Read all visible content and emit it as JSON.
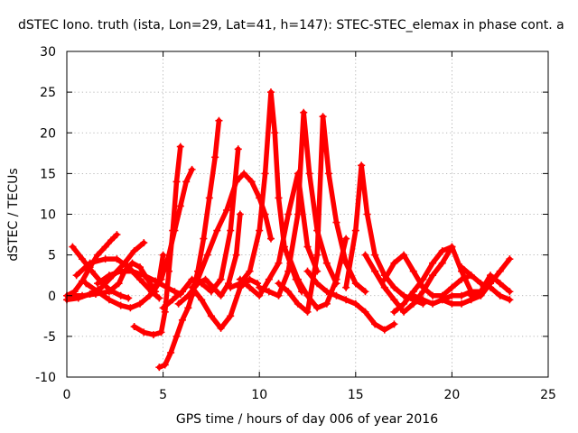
{
  "chart_data": {
    "type": "scatter",
    "title": "dSTEC Iono. truth (ista, Lon=29, Lat=41, h=147): STEC-STEC_elemax in phase cont. a",
    "xlabel": "GPS time / hours of day 006 of year 2016",
    "ylabel": "dSTEC  / TECUs",
    "xlim": [
      0,
      25
    ],
    "ylim": [
      -10,
      30
    ],
    "xticks": [
      0,
      5,
      10,
      15,
      20,
      25
    ],
    "yticks": [
      -10,
      -5,
      0,
      5,
      10,
      15,
      20,
      25,
      30
    ],
    "grid": true,
    "legend": "none",
    "marker": "plus",
    "color": "#ff0000",
    "series": [
      {
        "x": [
          0.0,
          0.4,
          0.8,
          1.2,
          1.6,
          2.0,
          2.3,
          2.6
        ],
        "y": [
          0.0,
          0.5,
          1.8,
          3.5,
          5.0,
          6.0,
          6.8,
          7.5
        ]
      },
      {
        "x": [
          0.3,
          0.8,
          1.3,
          1.8,
          2.3,
          2.8,
          3.2
        ],
        "y": [
          6.0,
          4.5,
          3.0,
          1.6,
          0.6,
          0.0,
          -0.3
        ]
      },
      {
        "x": [
          0.0,
          0.6,
          1.2,
          1.8,
          2.4,
          3.0,
          3.5,
          4.0
        ],
        "y": [
          -0.5,
          -0.3,
          0.2,
          1.0,
          2.5,
          4.0,
          5.5,
          6.5
        ]
      },
      {
        "x": [
          0.5,
          1.2,
          2.0,
          2.6,
          3.2,
          3.8,
          4.4,
          4.8
        ],
        "y": [
          2.5,
          4.0,
          4.5,
          4.5,
          3.5,
          2.0,
          0.5,
          -0.3
        ]
      },
      {
        "x": [
          0.2,
          0.8,
          1.5,
          2.2,
          2.7,
          3.0,
          3.4,
          3.8,
          4.2,
          4.6
        ],
        "y": [
          0.0,
          0.0,
          0.2,
          0.5,
          1.5,
          3.0,
          4.0,
          3.5,
          2.0,
          0.5
        ]
      },
      {
        "x": [
          1.0,
          1.6,
          2.2,
          2.8,
          3.3,
          3.8,
          4.3,
          4.8,
          5.0
        ],
        "y": [
          1.5,
          0.5,
          -0.5,
          -1.2,
          -1.5,
          -1.0,
          0.0,
          2.0,
          5.0
        ]
      },
      {
        "x": [
          1.6,
          2.2,
          2.8,
          3.4,
          4.0,
          4.6,
          5.2,
          5.6,
          5.9
        ],
        "y": [
          1.5,
          2.5,
          3.0,
          3.0,
          2.5,
          1.8,
          1.0,
          0.5,
          0.2
        ]
      },
      {
        "x": [
          3.5,
          4.0,
          4.5,
          4.9,
          5.1,
          5.3,
          5.5,
          5.7,
          5.9
        ],
        "y": [
          -3.8,
          -4.5,
          -4.8,
          -4.5,
          -2.0,
          3.0,
          8.0,
          14.0,
          18.3
        ]
      },
      {
        "x": [
          4.8,
          5.1,
          5.4,
          5.7,
          6.0,
          6.3,
          6.5,
          6.8,
          7.1,
          7.4,
          7.7,
          7.9
        ],
        "y": [
          -8.8,
          -8.5,
          -7.0,
          -5.0,
          -3.0,
          -1.5,
          0.0,
          3.0,
          7.0,
          12.0,
          17.0,
          21.5
        ]
      },
      {
        "x": [
          4.5,
          4.9,
          5.3,
          5.6,
          5.9,
          6.2,
          6.5
        ],
        "y": [
          0.5,
          2.0,
          5.0,
          8.0,
          11.0,
          14.0,
          15.5
        ]
      },
      {
        "x": [
          5.0,
          5.5,
          6.0,
          6.5,
          7.0,
          7.5,
          8.0,
          8.5,
          8.9
        ],
        "y": [
          -1.5,
          -0.5,
          0.5,
          2.0,
          1.5,
          0.5,
          2.0,
          8.0,
          18.0
        ]
      },
      {
        "x": [
          5.8,
          6.3,
          6.8,
          7.2,
          7.6,
          8.0,
          8.4,
          8.8,
          9.0
        ],
        "y": [
          -1.0,
          0.0,
          1.5,
          2.0,
          1.0,
          0.0,
          1.5,
          5.0,
          10.0
        ]
      },
      {
        "x": [
          6.5,
          7.0,
          7.5,
          8.0,
          8.5,
          9.0,
          9.5,
          9.9
        ],
        "y": [
          1.0,
          -0.5,
          -2.5,
          -4.0,
          -2.5,
          1.0,
          2.0,
          1.5
        ]
      },
      {
        "x": [
          6.8,
          7.3,
          7.8,
          8.3,
          8.8,
          9.2,
          9.6,
          10.0,
          10.3,
          10.6
        ],
        "y": [
          2.0,
          5.0,
          8.0,
          10.5,
          14.0,
          15.0,
          14.0,
          12.0,
          10.0,
          7.0
        ]
      },
      {
        "x": [
          8.5,
          9.0,
          9.5,
          10.0,
          10.3,
          10.6,
          10.8,
          11.0,
          11.3,
          11.6,
          11.9,
          12.2
        ],
        "y": [
          1.0,
          1.5,
          3.0,
          8.0,
          15.0,
          25.0,
          20.0,
          12.0,
          6.0,
          4.0,
          2.0,
          0.5
        ]
      },
      {
        "x": [
          9.0,
          9.5,
          10.0,
          10.5,
          11.0,
          11.5,
          12.0,
          12.5,
          13.0
        ],
        "y": [
          2.0,
          1.0,
          0.0,
          2.0,
          4.0,
          10.0,
          15.0,
          6.0,
          3.0
        ]
      },
      {
        "x": [
          10.0,
          10.5,
          11.0,
          11.5,
          12.0,
          12.3,
          12.6,
          13.0,
          13.5,
          14.0
        ],
        "y": [
          1.0,
          0.5,
          0.0,
          3.0,
          10.0,
          22.5,
          15.0,
          8.0,
          4.0,
          1.5
        ]
      },
      {
        "x": [
          11.0,
          11.5,
          12.0,
          12.5,
          13.0,
          13.3,
          13.6,
          14.0,
          14.5,
          15.0,
          15.5
        ],
        "y": [
          1.5,
          0.5,
          -1.0,
          -2.0,
          5.0,
          22.0,
          15.0,
          9.0,
          4.0,
          1.5,
          0.5
        ]
      },
      {
        "x": [
          11.5,
          12.0,
          12.5,
          13.0,
          13.5,
          14.0,
          14.5
        ],
        "y": [
          5.0,
          2.0,
          0.0,
          -1.5,
          -1.0,
          2.0,
          7.0
        ]
      },
      {
        "x": [
          12.5,
          13.0,
          13.5,
          14.0,
          14.5,
          15.0,
          15.5,
          16.0,
          16.5,
          17.0
        ],
        "y": [
          3.0,
          1.5,
          0.5,
          0.0,
          -0.5,
          -1.0,
          -2.0,
          -3.5,
          -4.2,
          -3.5
        ]
      },
      {
        "x": [
          14.5,
          15.0,
          15.3,
          15.6,
          16.0,
          16.5,
          17.0,
          17.5,
          18.0,
          18.5
        ],
        "y": [
          1.0,
          8.0,
          16.0,
          10.0,
          5.0,
          2.5,
          1.0,
          0.0,
          -0.5,
          -1.0
        ]
      },
      {
        "x": [
          15.5,
          16.0,
          16.5,
          17.0,
          17.5,
          18.0,
          18.5,
          19.0,
          19.5,
          20.0
        ],
        "y": [
          5.0,
          3.0,
          1.0,
          -0.5,
          -2.0,
          -1.0,
          0.5,
          2.5,
          4.0,
          6.0
        ]
      },
      {
        "x": [
          16.5,
          17.0,
          17.5,
          18.0,
          18.5,
          19.0,
          19.5,
          20.0,
          20.5,
          21.0
        ],
        "y": [
          2.0,
          4.0,
          5.0,
          3.0,
          1.0,
          0.0,
          0.0,
          1.0,
          2.0,
          2.5
        ]
      },
      {
        "x": [
          17.0,
          17.5,
          18.0,
          18.5,
          19.0,
          19.5,
          20.0,
          20.5,
          21.0
        ],
        "y": [
          -2.0,
          -1.0,
          0.5,
          2.0,
          4.0,
          5.5,
          6.0,
          3.0,
          0.5
        ]
      },
      {
        "x": [
          18.0,
          18.5,
          19.0,
          19.5,
          20.0,
          20.5,
          21.0,
          21.5
        ],
        "y": [
          0.0,
          -0.5,
          -1.0,
          -0.5,
          0.0,
          0.0,
          0.5,
          0.5
        ]
      },
      {
        "x": [
          19.5,
          20.0,
          20.5,
          21.0,
          21.5,
          22.0,
          22.5,
          23.0
        ],
        "y": [
          -0.5,
          -1.0,
          -1.0,
          -0.5,
          0.0,
          1.5,
          3.0,
          4.5
        ]
      },
      {
        "x": [
          20.5,
          21.0,
          21.5,
          22.0,
          22.5,
          23.0
        ],
        "y": [
          3.5,
          2.5,
          1.5,
          1.0,
          0.0,
          -0.5
        ]
      },
      {
        "x": [
          21.0,
          21.5,
          22.0,
          22.5,
          23.0
        ],
        "y": [
          0.0,
          0.5,
          2.5,
          1.5,
          0.5
        ]
      }
    ]
  }
}
